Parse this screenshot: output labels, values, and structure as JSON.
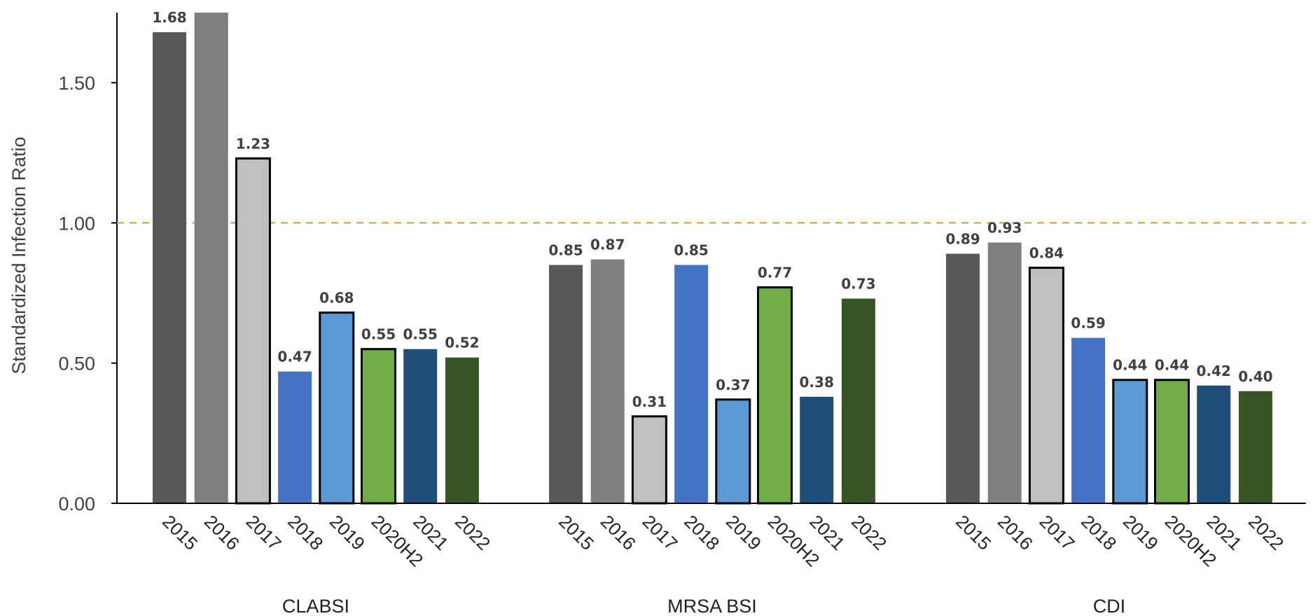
{
  "chart_data": {
    "type": "bar",
    "ylabel": "Standardized Infection Ratio",
    "ylim": [
      0,
      1.75
    ],
    "yticks": [
      "0.00",
      "0.50",
      "1.00",
      "1.50"
    ],
    "ytick_values": [
      0,
      0.5,
      1.0,
      1.5
    ],
    "reference_line": {
      "value": 1.0,
      "style": "dashed",
      "color": "#C9A227"
    },
    "grid": false,
    "categories": [
      "2015",
      "2016",
      "2017",
      "2018",
      "2019",
      "2020H2",
      "2021",
      "2022"
    ],
    "category_colors": [
      "#595959",
      "#7F7F7F",
      "#BFBFBF",
      "#4472C4",
      "#5B9BD5",
      "#70AD47",
      "#1F4E79",
      "#375623"
    ],
    "outlined_categories": [
      "2017",
      "2019",
      "2020H2"
    ],
    "groups": [
      {
        "name": "CLABSI",
        "values": [
          1.68,
          1.75,
          1.23,
          0.47,
          0.68,
          0.55,
          0.55,
          0.52
        ],
        "labels": [
          "1.68",
          "",
          "1.23",
          "0.47",
          "0.68",
          "0.55",
          "0.55",
          "0.52"
        ]
      },
      {
        "name": "MRSA BSI",
        "values": [
          0.85,
          0.87,
          0.31,
          0.85,
          0.37,
          0.77,
          0.38,
          0.73
        ],
        "labels": [
          "0.85",
          "0.87",
          "0.31",
          "0.85",
          "0.37",
          "0.77",
          "0.38",
          "0.73"
        ]
      },
      {
        "name": "CDI",
        "values": [
          0.89,
          0.93,
          0.84,
          0.59,
          0.44,
          0.44,
          0.42,
          0.4
        ],
        "labels": [
          "0.89",
          "0.93",
          "0.84",
          "0.59",
          "0.44",
          "0.44",
          "0.42",
          "0.40"
        ]
      }
    ]
  }
}
